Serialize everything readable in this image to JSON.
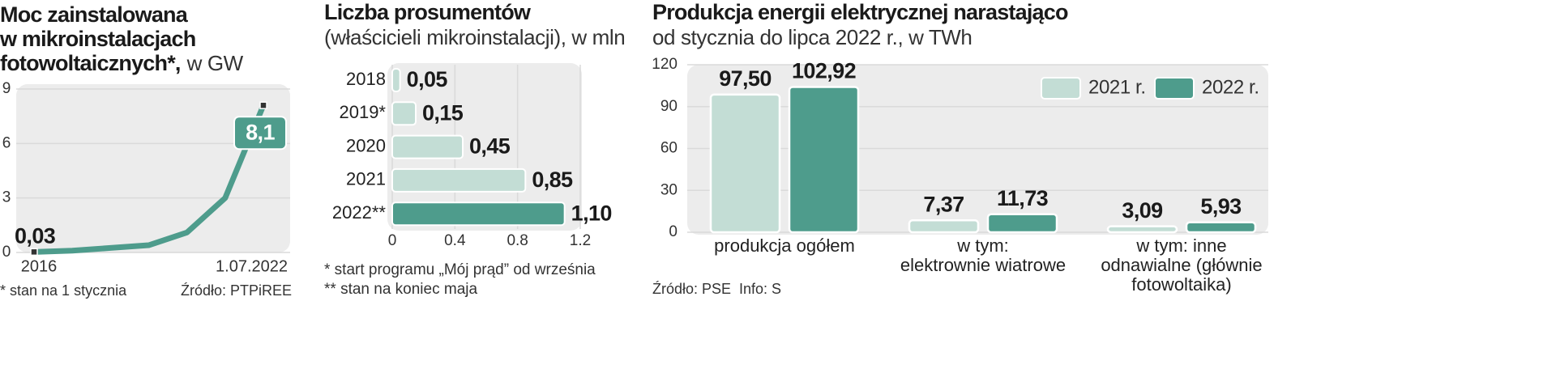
{
  "chart_data": [
    {
      "type": "line",
      "title": [
        "Moc zainstalowana",
        "w mikroinstalacjach",
        "fotowoltaicznych*,"
      ],
      "unit": "w GW",
      "categories": [
        "2016",
        null,
        null,
        null,
        null,
        null,
        "1.07.2022"
      ],
      "values": [
        0.03,
        0.1,
        0.25,
        0.4,
        1.1,
        3.0,
        8.1
      ],
      "value_labels": [
        "0,03",
        null,
        null,
        null,
        null,
        null,
        "8,1"
      ],
      "color": "#4e9c8c",
      "ylim": [
        0,
        9
      ],
      "yticks": [
        0,
        3,
        6,
        9
      ],
      "grid": true,
      "footnote": "* stan na 1 stycznia",
      "source": "Źródło: PTPiREE"
    },
    {
      "type": "hbar",
      "title": "Liczba prosumentów",
      "subtitle": "(właścicieli mikroinstalacji), w mln",
      "categories": [
        "2018",
        "2019*",
        "2020",
        "2021",
        "2022**"
      ],
      "values": [
        0.05,
        0.15,
        0.45,
        0.85,
        1.1
      ],
      "value_labels": [
        "0,05",
        "0,15",
        "0,45",
        "0,85",
        "1,10"
      ],
      "colors": [
        "#c3ddd5",
        "#c3ddd5",
        "#c3ddd5",
        "#c3ddd5",
        "#4e9c8c"
      ],
      "xlim": [
        0,
        1.2
      ],
      "xticks": [
        0,
        0.4,
        0.8,
        1.2
      ],
      "grid": true,
      "footnotes": [
        "* start programu „Mój prąd” od września",
        "** stan na koniec maja"
      ]
    },
    {
      "type": "grouped_bar",
      "title": "Produkcja energii elektrycznej narastająco",
      "subtitle": "od stycznia do lipca 2022 r., w TWh",
      "categories": [
        [
          "produkcja ogółem"
        ],
        [
          "w tym:",
          "elektrownie wiatrowe"
        ],
        [
          "w tym: inne",
          "odnawialne (głównie",
          "fotowoltaika)"
        ]
      ],
      "series": [
        {
          "name": "2021 r.",
          "color": "#c3ddd5",
          "values": [
            97.5,
            7.37,
            3.09
          ],
          "value_labels": [
            "97,50",
            "7,37",
            "3,09"
          ]
        },
        {
          "name": "2022 r.",
          "color": "#4e9c8c",
          "values": [
            102.92,
            11.73,
            5.93
          ],
          "value_labels": [
            "102,92",
            "11,73",
            "5,93"
          ]
        }
      ],
      "ylim": [
        0,
        120
      ],
      "yticks": [
        0,
        30,
        60,
        90,
        120
      ],
      "grid": true,
      "legend": "top-right",
      "source": "Źródło: PSE",
      "credit": "Info: S"
    }
  ]
}
